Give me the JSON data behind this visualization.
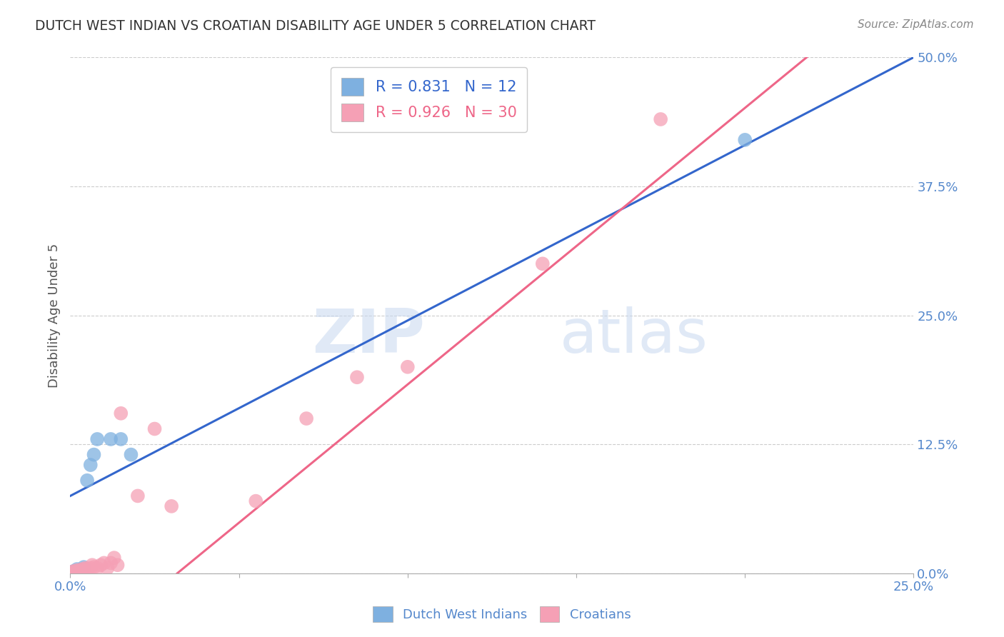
{
  "title": "DUTCH WEST INDIAN VS CROATIAN DISABILITY AGE UNDER 5 CORRELATION CHART",
  "source": "Source: ZipAtlas.com",
  "ylabel": "Disability Age Under 5",
  "xlim": [
    0.0,
    0.25
  ],
  "ylim": [
    0.0,
    0.5
  ],
  "watermark_line1": "ZIP",
  "watermark_line2": "atlas",
  "blue_label": "Dutch West Indians",
  "pink_label": "Croatians",
  "blue_R": "0.831",
  "blue_N": "12",
  "pink_R": "0.926",
  "pink_N": "30",
  "blue_color": "#7EB0E0",
  "pink_color": "#F5A0B5",
  "blue_line_color": "#3366CC",
  "pink_line_color": "#EE6688",
  "blue_points_x": [
    0.001,
    0.002,
    0.003,
    0.004,
    0.005,
    0.006,
    0.007,
    0.008,
    0.012,
    0.015,
    0.018,
    0.2
  ],
  "blue_points_y": [
    0.002,
    0.004,
    0.003,
    0.006,
    0.09,
    0.105,
    0.115,
    0.13,
    0.13,
    0.13,
    0.115,
    0.42
  ],
  "pink_points_x": [
    0.0005,
    0.001,
    0.0015,
    0.002,
    0.0025,
    0.003,
    0.0035,
    0.004,
    0.0045,
    0.005,
    0.006,
    0.0065,
    0.007,
    0.008,
    0.009,
    0.01,
    0.011,
    0.012,
    0.013,
    0.014,
    0.015,
    0.02,
    0.025,
    0.03,
    0.055,
    0.07,
    0.085,
    0.1,
    0.14,
    0.175
  ],
  "pink_points_y": [
    0.001,
    0.002,
    0.001,
    0.003,
    0.002,
    0.003,
    0.004,
    0.002,
    0.005,
    0.004,
    0.005,
    0.008,
    0.006,
    0.005,
    0.008,
    0.01,
    0.005,
    0.01,
    0.015,
    0.008,
    0.155,
    0.075,
    0.14,
    0.065,
    0.07,
    0.15,
    0.19,
    0.2,
    0.3,
    0.44
  ],
  "blue_line_x0": 0.0,
  "blue_line_x1": 0.25,
  "blue_line_y0": 0.075,
  "blue_line_y1": 0.5,
  "pink_line_intercept": -0.085,
  "pink_line_slope": 2.68,
  "grid_color": "#cccccc",
  "bg_color": "#ffffff",
  "title_color": "#333333",
  "ylabel_color": "#555555",
  "tick_color": "#5588CC"
}
